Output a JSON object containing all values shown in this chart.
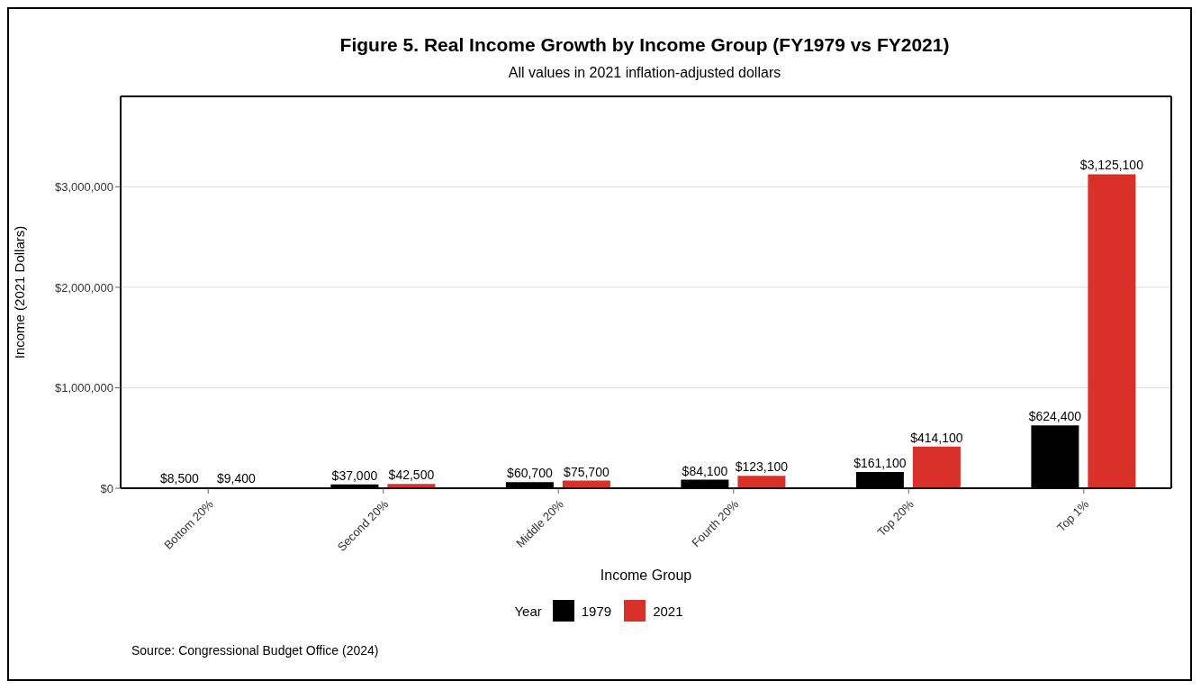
{
  "chart_data": {
    "type": "bar",
    "title": "Figure 5. Real Income Growth by Income Group (FY1979 vs FY2021)",
    "subtitle": "All values in 2021 inflation-adjusted dollars",
    "xlabel": "Income Group",
    "ylabel": "Income (2021 Dollars)",
    "legend_title": "Year",
    "categories": [
      "Bottom 20%",
      "Second 20%",
      "Middle 20%",
      "Fourth 20%",
      "Top 20%",
      "Top 1%"
    ],
    "series": [
      {
        "name": "1979",
        "color": "#000000",
        "values": [
          8500,
          37000,
          60700,
          84100,
          161100,
          624400
        ],
        "value_labels": [
          "$8,500",
          "$37,000",
          "$60,700",
          "$84,100",
          "$161,100",
          "$624,400"
        ]
      },
      {
        "name": "2021",
        "color": "#d7312a",
        "values": [
          9400,
          42500,
          75700,
          123100,
          414100,
          3125100
        ],
        "value_labels": [
          "$9,400",
          "$42,500",
          "$75,700",
          "$123,100",
          "$414,100",
          "$3,125,100"
        ]
      }
    ],
    "ylim": [
      0,
      3900000
    ],
    "yticks": [
      {
        "value": 0,
        "label": "$0"
      },
      {
        "value": 1000000,
        "label": "$1,000,000"
      },
      {
        "value": 2000000,
        "label": "$2,000,000"
      },
      {
        "value": 3000000,
        "label": "$3,000,000"
      }
    ],
    "grid": "y",
    "legend": "bottom",
    "annotations": [
      "Source: Congressional Budget Office (2024)"
    ]
  }
}
